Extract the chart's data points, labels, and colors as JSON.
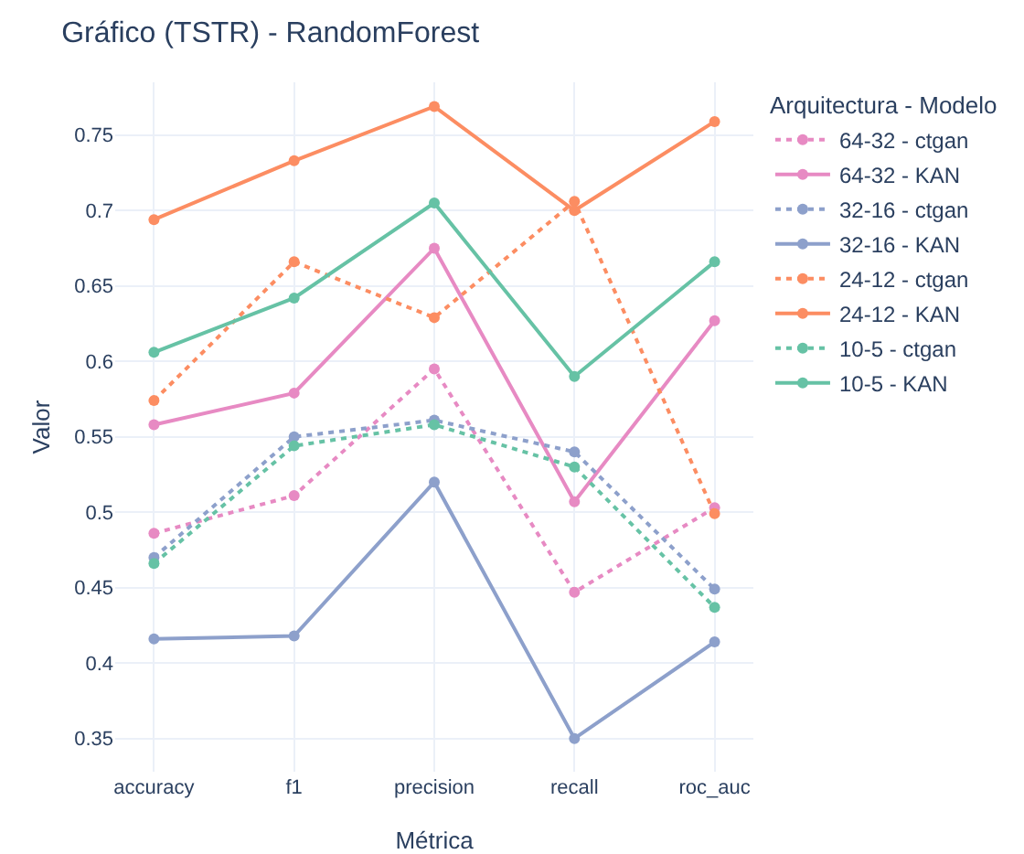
{
  "chart_data": {
    "type": "line",
    "title": "Gráfico (TSTR) - RandomForest",
    "xlabel": "Métrica",
    "ylabel": "Valor",
    "legend_title": "Arquitectura - Modelo",
    "categories": [
      "accuracy",
      "f1",
      "precision",
      "recall",
      "roc_auc"
    ],
    "series": [
      {
        "name": "64-32 - ctgan",
        "color": "#e78ac3",
        "line_style": "dotted",
        "values": [
          0.486,
          0.511,
          0.595,
          0.447,
          0.503
        ]
      },
      {
        "name": "64-32 - KAN",
        "color": "#e78ac3",
        "line_style": "solid",
        "values": [
          0.558,
          0.579,
          0.675,
          0.507,
          0.627
        ]
      },
      {
        "name": "32-16 - ctgan",
        "color": "#8da0cb",
        "line_style": "dotted",
        "values": [
          0.47,
          0.55,
          0.561,
          0.54,
          0.449
        ]
      },
      {
        "name": "32-16 - KAN",
        "color": "#8da0cb",
        "line_style": "solid",
        "values": [
          0.416,
          0.418,
          0.52,
          0.35,
          0.414
        ]
      },
      {
        "name": "24-12 - ctgan",
        "color": "#fc8d62",
        "line_style": "dotted",
        "values": [
          0.574,
          0.666,
          0.629,
          0.706,
          0.499
        ]
      },
      {
        "name": "24-12 - KAN",
        "color": "#fc8d62",
        "line_style": "solid",
        "values": [
          0.694,
          0.733,
          0.769,
          0.7,
          0.759
        ]
      },
      {
        "name": "10-5 - ctgan",
        "color": "#66c2a5",
        "line_style": "dotted",
        "values": [
          0.466,
          0.544,
          0.558,
          0.53,
          0.437
        ]
      },
      {
        "name": "10-5 - KAN",
        "color": "#66c2a5",
        "line_style": "solid",
        "values": [
          0.606,
          0.642,
          0.705,
          0.59,
          0.666
        ]
      }
    ],
    "ylim": [
      0.328,
      0.785
    ],
    "yticks": [
      {
        "value": 0.35,
        "label": "0.35"
      },
      {
        "value": 0.4,
        "label": "0.4"
      },
      {
        "value": 0.45,
        "label": "0.45"
      },
      {
        "value": 0.5,
        "label": "0.5"
      },
      {
        "value": 0.55,
        "label": "0.55"
      },
      {
        "value": 0.6,
        "label": "0.6"
      },
      {
        "value": 0.65,
        "label": "0.65"
      },
      {
        "value": 0.7,
        "label": "0.7"
      },
      {
        "value": 0.75,
        "label": "0.75"
      }
    ],
    "grid": true,
    "legend": "right",
    "marker": "circle"
  }
}
